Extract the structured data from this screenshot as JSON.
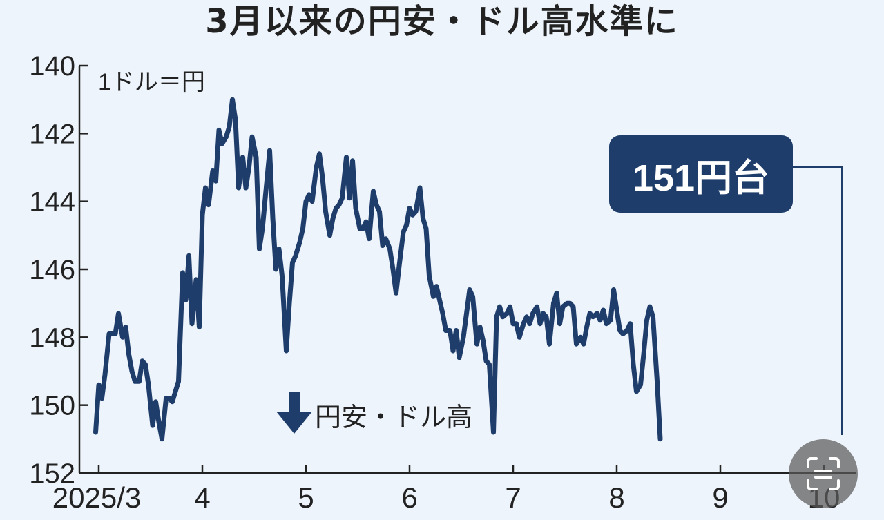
{
  "title": "3月以来の円安・ドル高水準に",
  "chart_data": {
    "type": "line",
    "title": "3月以来の円安・ドル高水準に",
    "unit_label": "1ドル＝円",
    "y_inverted": true,
    "ylim": [
      140,
      152
    ],
    "y_ticks": [
      140,
      142,
      144,
      146,
      148,
      150,
      152
    ],
    "x_ticks": [
      {
        "label": "2025/3",
        "x": 3
      },
      {
        "label": "4",
        "x": 4
      },
      {
        "label": "5",
        "x": 5
      },
      {
        "label": "6",
        "x": 6
      },
      {
        "label": "7",
        "x": 7
      },
      {
        "label": "8",
        "x": 8
      },
      {
        "label": "9",
        "x": 9
      },
      {
        "label": "10",
        "x": 10
      }
    ],
    "annotation_direction": "円安・ドル高",
    "callout": "151円台",
    "grid": false,
    "series": [
      {
        "color": "#1f3d6b",
        "points": [
          [
            2.97,
            150.8
          ],
          [
            3.0,
            149.4
          ],
          [
            3.03,
            149.8
          ],
          [
            3.06,
            149.1
          ],
          [
            3.1,
            147.9
          ],
          [
            3.16,
            147.9
          ],
          [
            3.19,
            147.3
          ],
          [
            3.23,
            148.0
          ],
          [
            3.26,
            147.7
          ],
          [
            3.29,
            148.5
          ],
          [
            3.32,
            149.0
          ],
          [
            3.35,
            149.3
          ],
          [
            3.39,
            149.3
          ],
          [
            3.42,
            148.7
          ],
          [
            3.45,
            148.8
          ],
          [
            3.48,
            149.4
          ],
          [
            3.52,
            150.6
          ],
          [
            3.55,
            149.9
          ],
          [
            3.58,
            150.5
          ],
          [
            3.61,
            151.0
          ],
          [
            3.65,
            149.8
          ],
          [
            3.68,
            149.8
          ],
          [
            3.71,
            149.9
          ],
          [
            3.74,
            149.6
          ],
          [
            3.77,
            149.3
          ],
          [
            3.81,
            146.1
          ],
          [
            3.84,
            146.9
          ],
          [
            3.87,
            145.6
          ],
          [
            3.9,
            147.6
          ],
          [
            3.94,
            146.3
          ],
          [
            3.97,
            147.7
          ],
          [
            4.0,
            144.4
          ],
          [
            4.03,
            143.6
          ],
          [
            4.06,
            144.1
          ],
          [
            4.1,
            143.1
          ],
          [
            4.13,
            143.4
          ],
          [
            4.16,
            141.9
          ],
          [
            4.19,
            142.3
          ],
          [
            4.23,
            142.1
          ],
          [
            4.26,
            141.8
          ],
          [
            4.29,
            141.0
          ],
          [
            4.32,
            141.6
          ],
          [
            4.35,
            143.6
          ],
          [
            4.39,
            142.7
          ],
          [
            4.42,
            143.6
          ],
          [
            4.45,
            143.0
          ],
          [
            4.48,
            142.1
          ],
          [
            4.52,
            142.7
          ],
          [
            4.55,
            145.4
          ],
          [
            4.58,
            144.8
          ],
          [
            4.61,
            143.8
          ],
          [
            4.65,
            142.5
          ],
          [
            4.68,
            144.5
          ],
          [
            4.71,
            146.0
          ],
          [
            4.74,
            145.4
          ],
          [
            4.77,
            146.2
          ],
          [
            4.81,
            148.4
          ],
          [
            4.84,
            147.0
          ],
          [
            4.87,
            145.8
          ],
          [
            4.9,
            145.6
          ],
          [
            4.94,
            145.2
          ],
          [
            4.97,
            144.8
          ],
          [
            5.0,
            144.0
          ],
          [
            5.03,
            143.8
          ],
          [
            5.06,
            144.0
          ],
          [
            5.1,
            143.0
          ],
          [
            5.13,
            142.6
          ],
          [
            5.16,
            143.3
          ],
          [
            5.19,
            144.3
          ],
          [
            5.23,
            145.0
          ],
          [
            5.26,
            144.5
          ],
          [
            5.29,
            144.2
          ],
          [
            5.32,
            144.1
          ],
          [
            5.35,
            143.9
          ],
          [
            5.39,
            142.7
          ],
          [
            5.42,
            143.9
          ],
          [
            5.45,
            142.8
          ],
          [
            5.48,
            144.2
          ],
          [
            5.52,
            144.8
          ],
          [
            5.55,
            144.8
          ],
          [
            5.58,
            144.6
          ],
          [
            5.61,
            145.1
          ],
          [
            5.65,
            143.7
          ],
          [
            5.68,
            144.1
          ],
          [
            5.71,
            144.3
          ],
          [
            5.74,
            145.3
          ],
          [
            5.77,
            145.1
          ],
          [
            5.81,
            145.4
          ],
          [
            5.84,
            146.0
          ],
          [
            5.87,
            146.7
          ],
          [
            5.9,
            145.9
          ],
          [
            5.94,
            144.9
          ],
          [
            5.97,
            144.7
          ],
          [
            6.0,
            144.2
          ],
          [
            6.03,
            144.4
          ],
          [
            6.06,
            144.3
          ],
          [
            6.1,
            143.6
          ],
          [
            6.13,
            144.5
          ],
          [
            6.16,
            144.8
          ],
          [
            6.19,
            146.2
          ],
          [
            6.23,
            146.8
          ],
          [
            6.26,
            146.5
          ],
          [
            6.29,
            146.9
          ],
          [
            6.32,
            147.3
          ],
          [
            6.35,
            147.8
          ],
          [
            6.39,
            147.8
          ],
          [
            6.42,
            148.4
          ],
          [
            6.45,
            147.8
          ],
          [
            6.48,
            148.6
          ],
          [
            6.52,
            148.0
          ],
          [
            6.55,
            147.3
          ],
          [
            6.58,
            146.6
          ],
          [
            6.61,
            146.8
          ],
          [
            6.65,
            148.2
          ],
          [
            6.68,
            147.7
          ],
          [
            6.71,
            148.1
          ],
          [
            6.74,
            148.7
          ],
          [
            6.77,
            148.8
          ],
          [
            6.81,
            150.8
          ],
          [
            6.84,
            147.4
          ],
          [
            6.87,
            147.1
          ],
          [
            6.9,
            147.4
          ],
          [
            6.94,
            147.3
          ],
          [
            6.97,
            147.1
          ],
          [
            7.0,
            147.6
          ],
          [
            7.03,
            147.6
          ],
          [
            7.06,
            148.0
          ],
          [
            7.1,
            147.6
          ],
          [
            7.13,
            147.4
          ],
          [
            7.16,
            147.6
          ],
          [
            7.19,
            147.3
          ],
          [
            7.23,
            147.1
          ],
          [
            7.26,
            147.6
          ],
          [
            7.29,
            147.3
          ],
          [
            7.32,
            147.4
          ],
          [
            7.35,
            148.2
          ],
          [
            7.39,
            147.0
          ],
          [
            7.42,
            146.7
          ],
          [
            7.45,
            147.6
          ],
          [
            7.48,
            147.1
          ],
          [
            7.52,
            147.0
          ],
          [
            7.55,
            147.0
          ],
          [
            7.58,
            147.1
          ],
          [
            7.61,
            148.2
          ],
          [
            7.65,
            148.0
          ],
          [
            7.68,
            148.2
          ],
          [
            7.71,
            147.7
          ],
          [
            7.74,
            147.3
          ],
          [
            7.77,
            147.4
          ],
          [
            7.81,
            147.3
          ],
          [
            7.84,
            147.5
          ],
          [
            7.87,
            147.2
          ],
          [
            7.9,
            147.6
          ],
          [
            7.94,
            147.5
          ],
          [
            7.97,
            146.6
          ],
          [
            8.0,
            147.2
          ],
          [
            8.03,
            147.8
          ],
          [
            8.06,
            147.9
          ],
          [
            8.1,
            147.8
          ],
          [
            8.13,
            147.6
          ],
          [
            8.16,
            148.8
          ],
          [
            8.19,
            149.6
          ],
          [
            8.23,
            149.4
          ],
          [
            8.26,
            148.5
          ],
          [
            8.29,
            147.5
          ],
          [
            8.32,
            147.1
          ],
          [
            8.35,
            147.4
          ],
          [
            8.39,
            149.3
          ],
          [
            8.42,
            151.0
          ]
        ]
      }
    ]
  }
}
